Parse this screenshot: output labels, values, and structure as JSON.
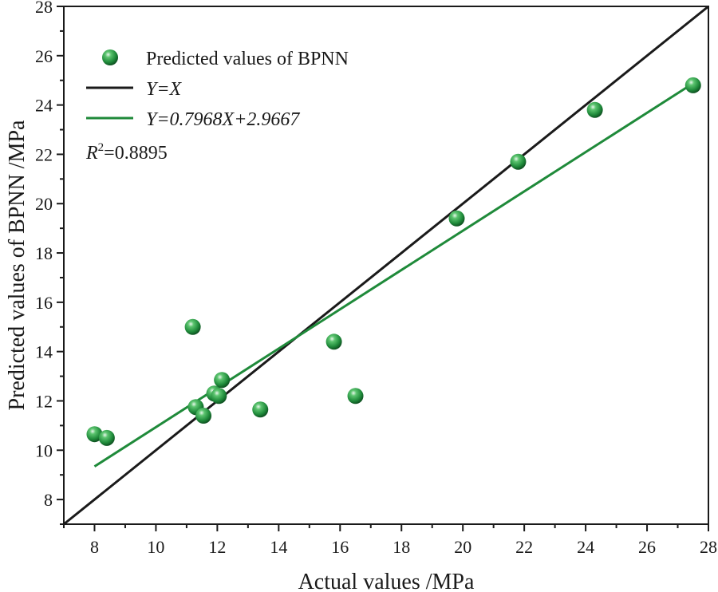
{
  "chart_data": {
    "type": "scatter",
    "title": "",
    "xlabel": "Actual values /MPa",
    "ylabel": "Predicted values of BPNN /MPa",
    "xlim": [
      7,
      28
    ],
    "ylim": [
      7,
      28
    ],
    "xticks": [
      8,
      10,
      12,
      14,
      16,
      18,
      20,
      22,
      24,
      26,
      28
    ],
    "yticks": [
      8,
      10,
      12,
      14,
      16,
      18,
      20,
      22,
      24,
      26,
      28
    ],
    "grid": false,
    "legend_position": "top-left",
    "series": [
      {
        "name": "Predicted values of BPNN",
        "kind": "scatter",
        "color": "#1f8a3a",
        "points": [
          {
            "x": 8.0,
            "y": 10.65
          },
          {
            "x": 8.4,
            "y": 10.5
          },
          {
            "x": 11.2,
            "y": 15.0
          },
          {
            "x": 11.3,
            "y": 11.75
          },
          {
            "x": 11.55,
            "y": 11.4
          },
          {
            "x": 11.9,
            "y": 12.3
          },
          {
            "x": 12.05,
            "y": 12.2
          },
          {
            "x": 12.15,
            "y": 12.85
          },
          {
            "x": 13.4,
            "y": 11.65
          },
          {
            "x": 15.8,
            "y": 14.4
          },
          {
            "x": 16.5,
            "y": 12.2
          },
          {
            "x": 19.8,
            "y": 19.4
          },
          {
            "x": 21.8,
            "y": 21.7
          },
          {
            "x": 24.3,
            "y": 23.8
          },
          {
            "x": 27.5,
            "y": 24.8
          }
        ]
      },
      {
        "name": "Y=X",
        "kind": "line",
        "color": "#1a1a1a",
        "x": [
          7,
          28
        ],
        "y": [
          7,
          28
        ]
      },
      {
        "name": "Y=0.7968X+2.9667",
        "kind": "line",
        "color": "#1f8a3a",
        "slope": 0.7968,
        "intercept": 2.9667,
        "x": [
          8,
          27.5
        ]
      }
    ],
    "annotations": [
      {
        "text_prefix": "R",
        "superscript": "2",
        "text_suffix": "=0.8895"
      }
    ]
  }
}
